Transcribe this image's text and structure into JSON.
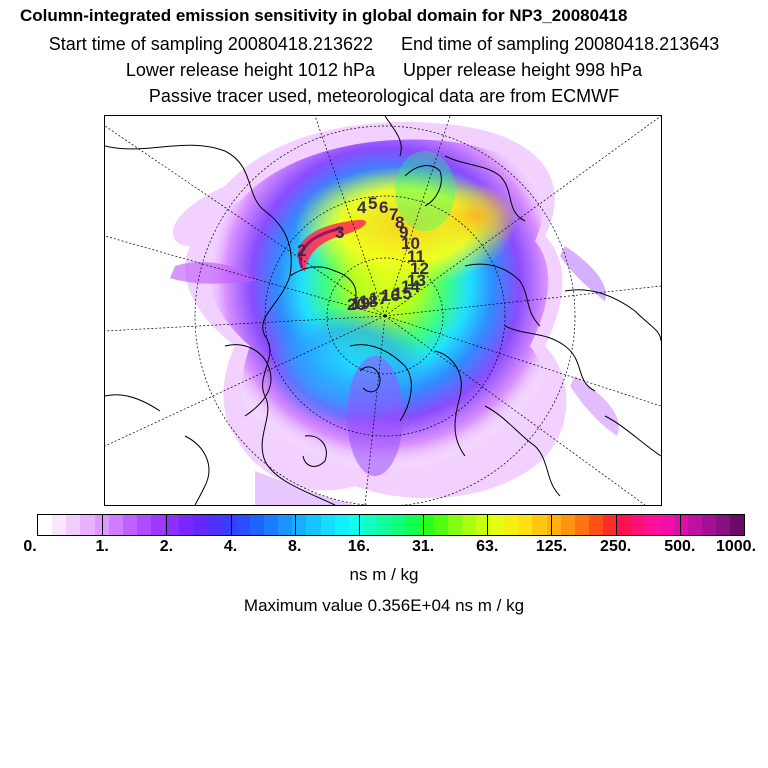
{
  "header": {
    "title": "Column-integrated emission sensitivity in global domain for NP3_20080418",
    "start_sampling": "Start time of sampling 20080418.213622",
    "end_sampling": "End time of sampling 20080418.213643",
    "lower_release": "Lower release height 1012 hPa",
    "upper_release": "Upper release height  998 hPa",
    "tracer_note": "Passive tracer used, meteorological data are from ECMWF"
  },
  "map": {
    "projection": "north-polar-stereographic",
    "trajectory_labels": [
      "1",
      "2",
      "3",
      "4",
      "5",
      "6",
      "7",
      "8",
      "9",
      "10",
      "11",
      "12",
      "13",
      "14",
      "15",
      "16",
      "17",
      "18",
      "19",
      "20"
    ],
    "plume_palette": [
      "#ffffff",
      "#f7d8ff",
      "#e6a0ff",
      "#c85cff",
      "#9a3cff",
      "#5a3cff",
      "#2f6bff",
      "#27b0ff",
      "#16f0ff",
      "#20ff9a",
      "#3cff2a",
      "#a8ff1e",
      "#e6ff1e",
      "#ffe11a",
      "#ffa800",
      "#ff3a1a",
      "#ff1a6a",
      "#b0106a"
    ]
  },
  "colorbar": {
    "colors": [
      "#ffffff",
      "#f9e6ff",
      "#f1ccff",
      "#e8b2ff",
      "#de98ff",
      "#d07cff",
      "#c060ff",
      "#b04cff",
      "#9c38ff",
      "#8a30ff",
      "#7628ff",
      "#6428ff",
      "#4f30ff",
      "#3a3cff",
      "#2c4cff",
      "#1e64ff",
      "#1a7cff",
      "#1a94ff",
      "#1aacff",
      "#18c4ff",
      "#16dcff",
      "#10f0ff",
      "#10ffe4",
      "#10ffc0",
      "#10ff9c",
      "#10ff78",
      "#10ff50",
      "#28ff20",
      "#50ff10",
      "#80ff10",
      "#a8ff10",
      "#c8ff10",
      "#e4ff10",
      "#f4f010",
      "#ffe010",
      "#ffc810",
      "#ffb010",
      "#ff9410",
      "#ff7410",
      "#ff5018",
      "#ff2c28",
      "#ff1050",
      "#ff1078",
      "#ff109a",
      "#f410a8",
      "#dc10a8",
      "#c010a0",
      "#a41094",
      "#881080",
      "#6a0c66"
    ],
    "tick_labels": [
      "0.",
      "1.",
      "2.",
      "4.",
      "8.",
      "16.",
      "31.",
      "63.",
      "125.",
      "250.",
      "500.",
      "1000."
    ],
    "units": "ns m / kg"
  },
  "footer": {
    "max_value_text": "Maximum value  0.356E+04 ns m / kg"
  }
}
